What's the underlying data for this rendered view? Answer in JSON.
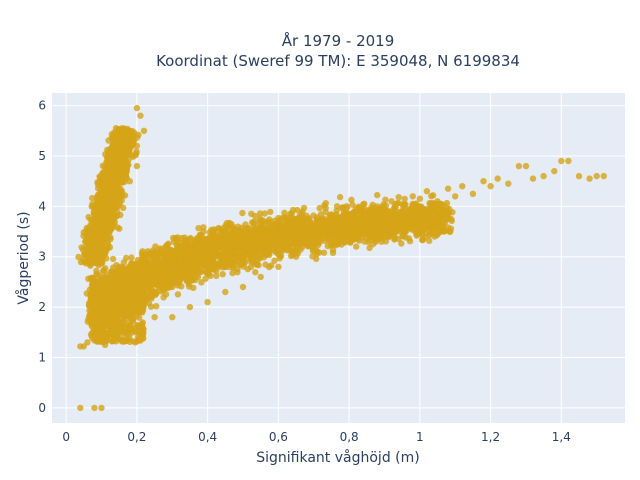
{
  "chart_data": {
    "type": "scatter",
    "title_line1": "År 1979 - 2019",
    "title_line2": "Koordinat (Sweref 99 TM): E 359048, N 6199834",
    "xlabel": "Signifikant våghöjd (m)",
    "ylabel": "Vågperiod (s)",
    "xlim": [
      -0.04,
      1.58
    ],
    "ylim": [
      -0.3,
      6.25
    ],
    "x_ticks": [
      0,
      0.2,
      0.4,
      0.6,
      0.8,
      1.0,
      1.2,
      1.4
    ],
    "x_tick_labels": [
      "0",
      "0,2",
      "0,4",
      "0,6",
      "0,8",
      "1",
      "1,2",
      "1,4"
    ],
    "y_ticks": [
      0,
      1,
      2,
      3,
      4,
      5,
      6
    ],
    "y_tick_labels": [
      "0",
      "1",
      "2",
      "3",
      "4",
      "5",
      "6"
    ],
    "grid": true,
    "colors": {
      "marker": "#D4A418",
      "plot_bg": "#E5ECF6",
      "grid": "#ffffff",
      "text": "#2a3f5f"
    },
    "series": [
      {
        "points": [
          [
            0.04,
            0.0
          ],
          [
            0.08,
            0.0
          ],
          [
            0.1,
            0.0
          ],
          [
            0.04,
            1.22
          ],
          [
            0.05,
            1.22
          ],
          [
            0.06,
            1.3
          ],
          [
            0.08,
            1.4
          ],
          [
            0.1,
            1.35
          ],
          [
            0.11,
            1.25
          ],
          [
            0.12,
            1.5
          ],
          [
            0.09,
            1.6
          ],
          [
            0.07,
            1.7
          ],
          [
            0.12,
            1.9
          ],
          [
            0.15,
            2.1
          ],
          [
            0.13,
            2.3
          ],
          [
            0.16,
            2.5
          ],
          [
            0.2,
            2.3
          ],
          [
            0.22,
            2.2
          ],
          [
            0.18,
            2.8
          ],
          [
            0.25,
            2.5
          ],
          [
            0.28,
            2.6
          ],
          [
            0.3,
            2.4
          ],
          [
            0.32,
            2.8
          ],
          [
            0.35,
            2.6
          ],
          [
            0.38,
            2.9
          ],
          [
            0.4,
            2.7
          ],
          [
            0.42,
            3.0
          ],
          [
            0.45,
            2.8
          ],
          [
            0.48,
            3.1
          ],
          [
            0.5,
            2.9
          ],
          [
            0.52,
            3.2
          ],
          [
            0.55,
            3.0
          ],
          [
            0.58,
            3.3
          ],
          [
            0.6,
            3.1
          ],
          [
            0.62,
            3.5
          ],
          [
            0.65,
            3.3
          ],
          [
            0.68,
            3.6
          ],
          [
            0.7,
            3.4
          ],
          [
            0.72,
            3.7
          ],
          [
            0.75,
            3.5
          ],
          [
            0.78,
            3.8
          ],
          [
            0.8,
            3.6
          ],
          [
            0.82,
            3.9
          ],
          [
            0.85,
            3.7
          ],
          [
            0.88,
            4.0
          ],
          [
            0.9,
            3.8
          ],
          [
            0.92,
            4.1
          ],
          [
            0.95,
            3.9
          ],
          [
            0.98,
            4.2
          ],
          [
            1.0,
            4.0
          ],
          [
            1.02,
            4.3
          ],
          [
            1.05,
            4.1
          ],
          [
            1.08,
            4.35
          ],
          [
            1.1,
            4.2
          ],
          [
            1.12,
            4.4
          ],
          [
            1.15,
            4.25
          ],
          [
            1.18,
            4.5
          ],
          [
            1.2,
            4.4
          ],
          [
            1.22,
            4.55
          ],
          [
            1.25,
            4.45
          ],
          [
            1.28,
            4.8
          ],
          [
            1.3,
            4.8
          ],
          [
            1.32,
            4.55
          ],
          [
            1.35,
            4.6
          ],
          [
            1.38,
            4.7
          ],
          [
            1.4,
            4.9
          ],
          [
            1.42,
            4.9
          ],
          [
            1.45,
            4.6
          ],
          [
            1.48,
            4.55
          ],
          [
            1.5,
            4.6
          ],
          [
            1.52,
            4.6
          ],
          [
            0.08,
            3.0
          ],
          [
            0.09,
            3.4
          ],
          [
            0.1,
            3.8
          ],
          [
            0.11,
            4.2
          ],
          [
            0.12,
            4.6
          ],
          [
            0.13,
            5.0
          ],
          [
            0.14,
            5.3
          ],
          [
            0.15,
            5.5
          ],
          [
            0.17,
            5.5
          ],
          [
            0.19,
            5.4
          ],
          [
            0.2,
            5.2
          ],
          [
            0.2,
            5.95
          ],
          [
            0.21,
            5.8
          ],
          [
            0.22,
            5.5
          ],
          [
            0.16,
            4.8
          ],
          [
            0.18,
            4.5
          ],
          [
            0.2,
            4.8
          ],
          [
            0.14,
            4.4
          ],
          [
            0.12,
            3.9
          ],
          [
            0.1,
            3.5
          ],
          [
            0.2,
            1.6
          ],
          [
            0.25,
            1.8
          ],
          [
            0.3,
            1.8
          ],
          [
            0.35,
            2.0
          ],
          [
            0.4,
            2.1
          ],
          [
            0.45,
            2.3
          ],
          [
            0.5,
            2.4
          ],
          [
            0.55,
            2.6
          ],
          [
            0.6,
            2.8
          ],
          [
            0.65,
            3.0
          ],
          [
            0.7,
            3.2
          ],
          [
            0.75,
            3.3
          ],
          [
            0.8,
            3.4
          ],
          [
            0.85,
            3.5
          ],
          [
            0.9,
            3.6
          ],
          [
            0.95,
            3.7
          ],
          [
            1.0,
            3.8
          ],
          [
            1.05,
            3.9
          ]
        ]
      }
    ]
  }
}
